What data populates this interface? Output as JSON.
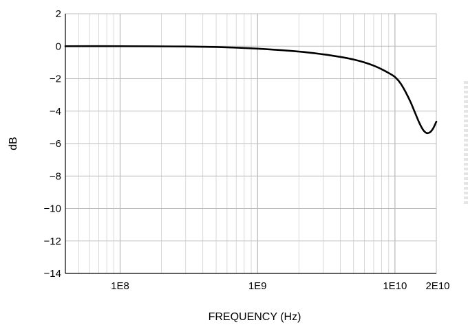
{
  "chart_data": {
    "type": "line",
    "title": "",
    "xlabel": "FREQUENCY (Hz)",
    "ylabel": "dB",
    "x_scale": "log",
    "xlim": [
      40000000,
      20000000000
    ],
    "ylim": [
      -14,
      2
    ],
    "grid": true,
    "x_tick_values": [
      100000000,
      1000000000,
      10000000000,
      20000000000
    ],
    "x_tick_labels": [
      "1E8",
      "1E9",
      "1E10",
      "2E10"
    ],
    "y_tick_values": [
      2,
      0,
      -2,
      -4,
      -6,
      -8,
      -10,
      -12,
      -14
    ],
    "y_tick_labels": [
      "2",
      "0",
      "−2",
      "−4",
      "−6",
      "−8",
      "−10",
      "−12",
      "−14"
    ],
    "series": [
      {
        "color": "#000000",
        "x": [
          40000000,
          100000000,
          300000000,
          600000000,
          1000000000,
          2000000000,
          3000000000,
          4000000000,
          5000000000,
          6000000000,
          7000000000,
          8000000000,
          9000000000,
          10000000000,
          11000000000,
          12000000000,
          13000000000,
          14000000000,
          15000000000,
          16000000000,
          17000000000,
          18000000000,
          19000000000,
          20000000000
        ],
        "y": [
          0,
          0,
          -0.02,
          -0.07,
          -0.15,
          -0.33,
          -0.5,
          -0.66,
          -0.82,
          -1.0,
          -1.2,
          -1.42,
          -1.65,
          -1.9,
          -2.3,
          -2.85,
          -3.45,
          -4.1,
          -4.7,
          -5.15,
          -5.35,
          -5.3,
          -5.05,
          -4.65
        ]
      }
    ]
  }
}
